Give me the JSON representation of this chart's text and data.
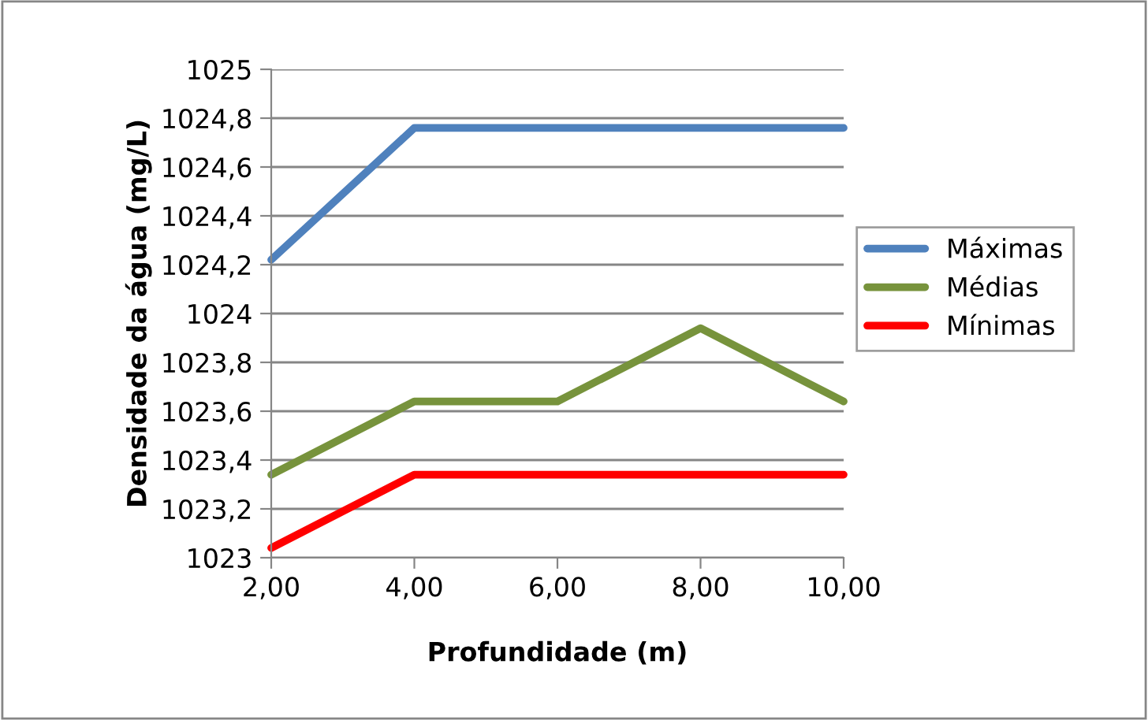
{
  "chart_data": {
    "type": "line",
    "xlabel": "Profundidade (m)",
    "ylabel": "Densidade da água (mg/L)",
    "x": [
      2,
      4,
      6,
      8,
      10
    ],
    "series": [
      {
        "name": "Máximas",
        "color": "#4f81bd",
        "values": [
          1024.22,
          1024.76,
          1024.76,
          1024.76,
          1024.76
        ]
      },
      {
        "name": "Médias",
        "color": "#77933c",
        "values": [
          1023.34,
          1023.64,
          1023.64,
          1023.94,
          1023.64
        ]
      },
      {
        "name": "Mínimas",
        "color": "#ff0000",
        "values": [
          1023.04,
          1023.34,
          1023.34,
          1023.34,
          1023.34
        ]
      }
    ],
    "xlim": [
      2,
      10
    ],
    "xticks": [
      {
        "value": 2,
        "label": "2,00"
      },
      {
        "value": 4,
        "label": "4,00"
      },
      {
        "value": 6,
        "label": "6,00"
      },
      {
        "value": 8,
        "label": "8,00"
      },
      {
        "value": 10,
        "label": "10,00"
      }
    ],
    "ylim": [
      1023,
      1025
    ],
    "yticks": [
      1023,
      {
        "value": 1023.2,
        "label": "1023,2"
      },
      {
        "value": 1023.4,
        "label": "1023,4"
      },
      {
        "value": 1023.6,
        "label": "1023,6"
      },
      {
        "value": 1023.8,
        "label": "1023,8"
      },
      1024,
      {
        "value": 1024.2,
        "label": "1024,2"
      },
      {
        "value": 1024.4,
        "label": "1024,4"
      },
      {
        "value": 1024.6,
        "label": "1024,6"
      },
      {
        "value": 1024.8,
        "label": "1024,8"
      },
      1025
    ],
    "grid": "y",
    "legend": "right",
    "marker": "none",
    "line_style": "solid"
  }
}
